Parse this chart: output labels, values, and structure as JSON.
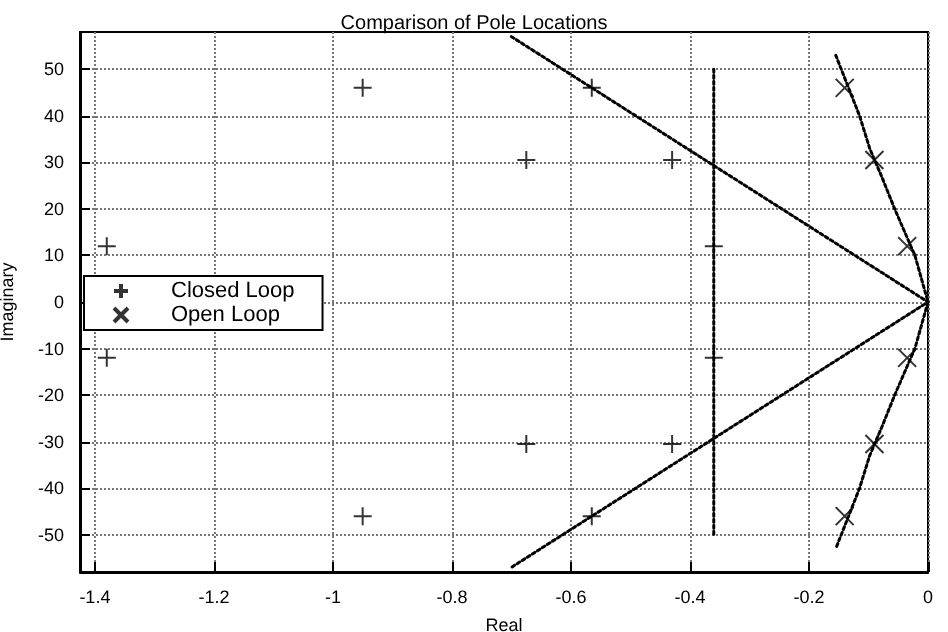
{
  "chart_data": {
    "type": "scatter",
    "title": "Comparison of Pole Locations",
    "xlabel": "Real",
    "ylabel": "Imaginary",
    "xlim": [
      -1.425,
      0
    ],
    "xticks": [
      -1.4,
      -1.2,
      -1,
      -0.8,
      -0.6,
      -0.4,
      -0.2,
      0
    ],
    "ylim": [
      -58,
      58
    ],
    "yticks": [
      -50,
      -40,
      -30,
      -20,
      -10,
      0,
      10,
      20,
      30,
      40,
      50
    ],
    "grid": true,
    "legend": "left",
    "series": [
      {
        "name": "Closed Loop",
        "color": "#000000",
        "marker": "plus",
        "x": [
          -1.38,
          -1.38,
          -0.95,
          -0.95,
          -0.675,
          -0.675,
          -0.565,
          -0.565,
          -0.43,
          -0.43,
          -0.36,
          -0.36
        ],
        "values": [
          12,
          -12,
          46,
          -46,
          30.5,
          -30.5,
          46,
          -46,
          30.5,
          -30.5,
          12,
          -12
        ]
      },
      {
        "name": "Open Loop",
        "color": "#000000",
        "marker": "cross",
        "x": [
          -0.14,
          -0.14,
          -0.09,
          -0.09,
          -0.035,
          -0.035
        ],
        "values": [
          46,
          -46,
          30.5,
          -30.5,
          12,
          -12
        ]
      },
      {
        "type": "line",
        "color": "#000000",
        "marker": "none",
        "line_style": "dotted",
        "x": [
          -0.7,
          0,
          -0.7
        ],
        "values": [
          57,
          0,
          -57
        ]
      },
      {
        "type": "line",
        "color": "#000000",
        "marker": "none",
        "line_style": "dotted",
        "x": [
          -0.36,
          -0.36
        ],
        "values": [
          50,
          -50
        ]
      },
      {
        "type": "line",
        "color": "#000000",
        "marker": "none",
        "line_style": "dotted",
        "x": [
          -0.155,
          -0.115,
          -0.098,
          -0.078,
          -0.056,
          -0.022,
          0,
          -0.022,
          -0.056,
          -0.078,
          -0.098,
          -0.115,
          -0.155
        ],
        "values": [
          53,
          40,
          33,
          27,
          20,
          10,
          0,
          -10,
          -20,
          -27,
          -33,
          -40,
          -53
        ]
      }
    ]
  }
}
